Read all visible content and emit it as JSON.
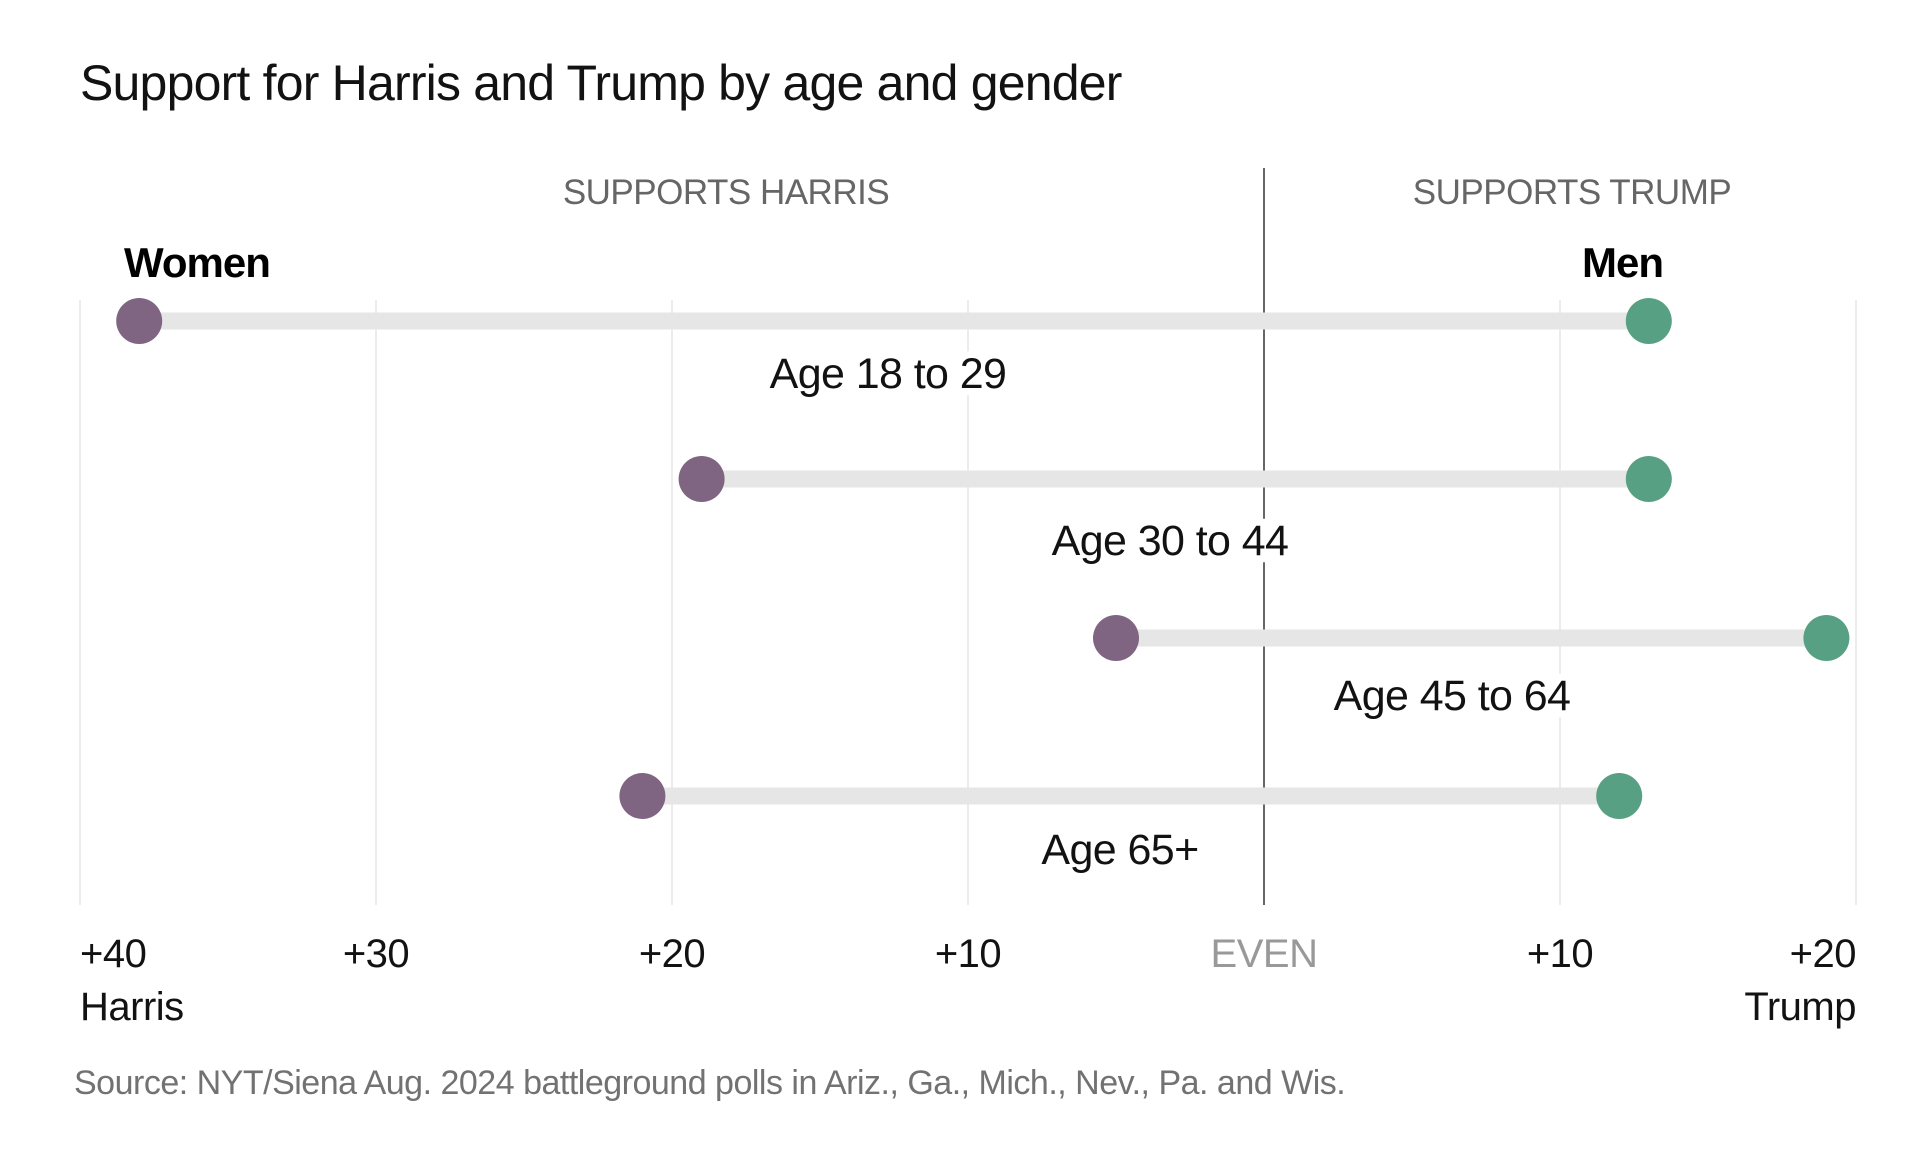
{
  "chart_data": {
    "type": "dumbbell",
    "title": "Support for Harris and Trump by age and gender",
    "side_labels": {
      "left": "SUPPORTS HARRIS",
      "right": "SUPPORTS TRUMP"
    },
    "legend": [
      {
        "name": "Women",
        "color": "#7f6581"
      },
      {
        "name": "Men",
        "color": "#57a083"
      }
    ],
    "x_axis": {
      "range": [
        -40,
        20
      ],
      "note": "negative = Harris margin, positive = Trump margin",
      "ticks": [
        {
          "value": -40,
          "label": "+40",
          "sublabel": "Harris"
        },
        {
          "value": -30,
          "label": "+30"
        },
        {
          "value": -20,
          "label": "+20"
        },
        {
          "value": -10,
          "label": "+10"
        },
        {
          "value": 0,
          "label": "EVEN"
        },
        {
          "value": 10,
          "label": "+10"
        },
        {
          "value": 20,
          "label": "+20",
          "sublabel": "Trump"
        }
      ]
    },
    "categories": [
      "Age 18 to 29",
      "Age 30 to 44",
      "Age 45 to 64",
      "Age 65+"
    ],
    "series": [
      {
        "name": "Women",
        "values": [
          -38,
          -19,
          -5,
          -21
        ]
      },
      {
        "name": "Men",
        "values": [
          13,
          13,
          19,
          12
        ]
      }
    ],
    "source": "Source: NYT/Siena Aug. 2024 battleground polls in Ariz., Ga., Mich., Nev., Pa. and Wis."
  },
  "colors": {
    "women": "#7f6581",
    "men": "#57a083",
    "bar": "#e6e6e6",
    "grid": "#ececec",
    "zero_line": "#666666"
  }
}
